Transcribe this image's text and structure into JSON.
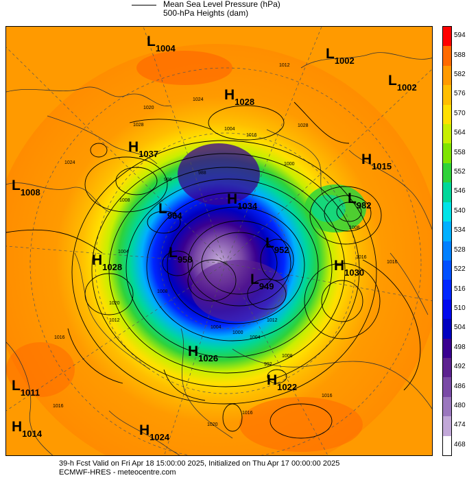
{
  "legend": {
    "mslp": "Mean Sea Level Pressure (hPa)",
    "heights": "500-hPa Heights (dam)"
  },
  "colorbar": {
    "levels": [
      "594",
      "588",
      "582",
      "576",
      "570",
      "564",
      "558",
      "552",
      "546",
      "540",
      "534",
      "528",
      "522",
      "516",
      "510",
      "504",
      "498",
      "492",
      "486",
      "480",
      "474",
      "468"
    ],
    "colors": [
      "#ff0000",
      "#ff6a00",
      "#ff9a00",
      "#ffbe00",
      "#ffe000",
      "#c8ef00",
      "#7fe400",
      "#2fd23a",
      "#00d79a",
      "#00e3e8",
      "#00b0ff",
      "#0080ff",
      "#0050ff",
      "#0026ff",
      "#0008ee",
      "#0000c0",
      "#3a0090",
      "#5d2290",
      "#7a4aa6",
      "#9b77be",
      "#c2a8d8",
      "#ffffff"
    ]
  },
  "systems": [
    {
      "type": "L",
      "value": "1004"
    },
    {
      "type": "H",
      "value": "1028"
    },
    {
      "type": "L",
      "value": "1002"
    },
    {
      "type": "L",
      "value": "1002"
    },
    {
      "type": "H",
      "value": "1037"
    },
    {
      "type": "H",
      "value": "1015"
    },
    {
      "type": "L",
      "value": "1008"
    },
    {
      "type": "L",
      "value": "982"
    },
    {
      "type": "H",
      "value": "1034"
    },
    {
      "type": "L",
      "value": "964"
    },
    {
      "type": "L",
      "value": "952"
    },
    {
      "type": "L",
      "value": "958"
    },
    {
      "type": "H",
      "value": "1028"
    },
    {
      "type": "H",
      "value": "1030"
    },
    {
      "type": "L",
      "value": "949"
    },
    {
      "type": "H",
      "value": "1026"
    },
    {
      "type": "H",
      "value": "1022"
    },
    {
      "type": "L",
      "value": "1011"
    },
    {
      "type": "H",
      "value": "1014"
    },
    {
      "type": "H",
      "value": "1024"
    }
  ],
  "isobar_labels": [
    "1012",
    "1024",
    "1020",
    "1028",
    "1024",
    "1004",
    "1016",
    "1028",
    "996",
    "1000",
    "1008",
    "1004",
    "1008",
    "1012",
    "1016",
    "1016",
    "1020",
    "1012",
    "1016",
    "1008",
    "1004",
    "1000",
    "1004",
    "1016",
    "1008",
    "1020",
    "1016",
    "1016",
    "988",
    "992"
  ],
  "footer": {
    "line1": "39-h Fcst Valid on Fri Apr 18 15:00:00 2025, Initialized on Thu Apr 17 00:00:00 2025",
    "line2": "ECMWF-HRES  - meteocentre.com"
  }
}
